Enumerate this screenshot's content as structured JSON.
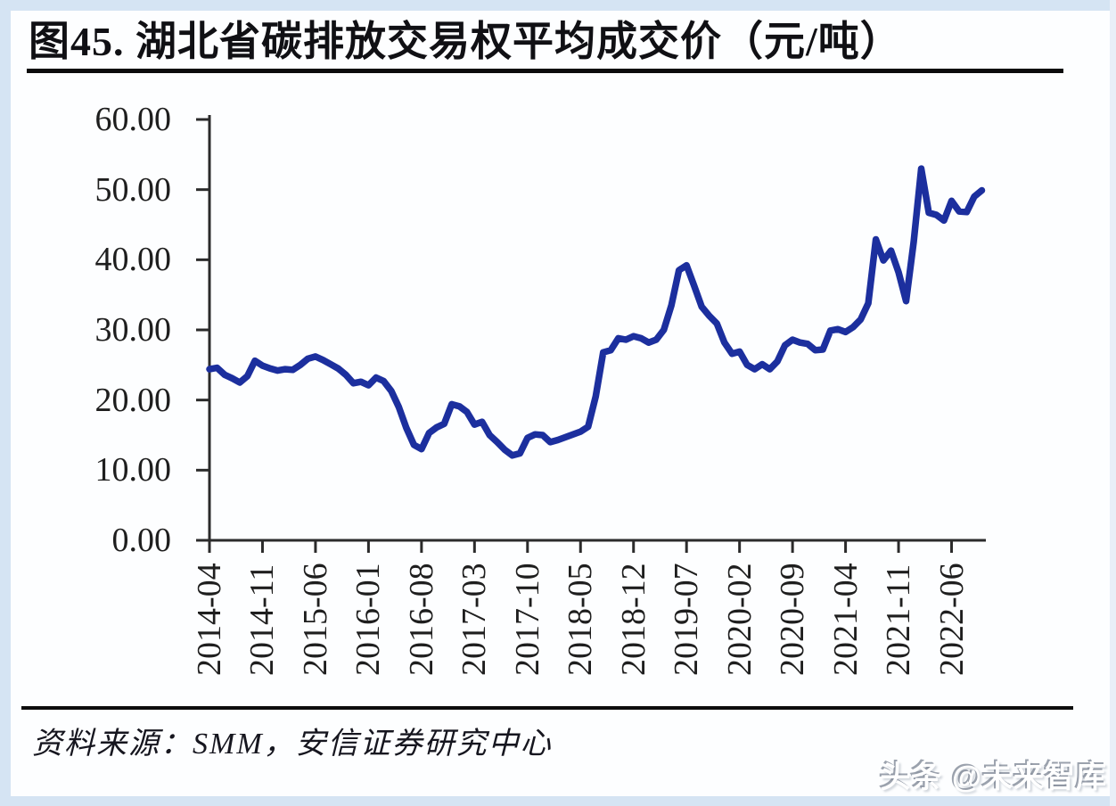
{
  "page": {
    "title": "图45. 湖北省碳排放交易权平均成交价（元/吨）",
    "source_label": "资料来源：SMM，安信证券研究中心",
    "watermark": "头条 @未来智库"
  },
  "chart_data": {
    "type": "line",
    "title": "湖北省碳排放交易权平均成交价（元/吨）",
    "unit": "元/吨",
    "grid": false,
    "legend_position": "none",
    "line_color": "#1c2f9e",
    "axis_color": "#2b2b2b",
    "ylim": [
      0,
      60
    ],
    "y_tick_labels": [
      "60.00",
      "50.00",
      "40.00",
      "30.00",
      "20.00",
      "10.00",
      "0.00"
    ],
    "x_tick_labels": [
      "2014-04",
      "2014-11",
      "2015-06",
      "2016-01",
      "2016-08",
      "2017-03",
      "2017-10",
      "2018-05",
      "2018-12",
      "2019-07",
      "2020-02",
      "2020-09",
      "2021-04",
      "2021-11",
      "2022-06"
    ],
    "x_tick_interval_months": 7,
    "series": [
      {
        "name": "湖北省碳排放交易权平均成交价",
        "x_monthly_from": "2014-04",
        "x_monthly_to": "2022-10",
        "values": [
          24.4,
          24.6,
          23.6,
          23.1,
          22.5,
          23.4,
          25.6,
          24.9,
          24.5,
          24.2,
          24.4,
          24.3,
          25.0,
          25.9,
          26.2,
          25.7,
          25.1,
          24.5,
          23.6,
          22.4,
          22.6,
          22.1,
          23.2,
          22.7,
          21.3,
          19.0,
          16.0,
          13.6,
          13.0,
          15.3,
          16.1,
          16.6,
          19.4,
          19.1,
          18.3,
          16.5,
          16.9,
          15.0,
          14.0,
          12.9,
          12.1,
          12.4,
          14.6,
          15.1,
          15.0,
          14.0,
          14.3,
          14.7,
          15.1,
          15.5,
          16.2,
          20.5,
          26.8,
          27.1,
          28.8,
          28.6,
          29.1,
          28.8,
          28.2,
          28.6,
          30.0,
          33.5,
          38.5,
          39.2,
          36.3,
          33.3,
          32.0,
          30.9,
          28.2,
          26.6,
          26.9,
          25.0,
          24.4,
          25.1,
          24.4,
          25.5,
          27.8,
          28.6,
          28.2,
          28.0,
          27.1,
          27.2,
          29.9,
          30.1,
          29.7,
          30.4,
          31.5,
          33.8,
          42.9,
          39.9,
          41.3,
          38.2,
          34.1,
          42.5,
          53.0,
          46.7,
          46.4,
          45.6,
          48.4,
          46.9,
          46.8,
          49.0,
          49.9
        ]
      }
    ]
  }
}
